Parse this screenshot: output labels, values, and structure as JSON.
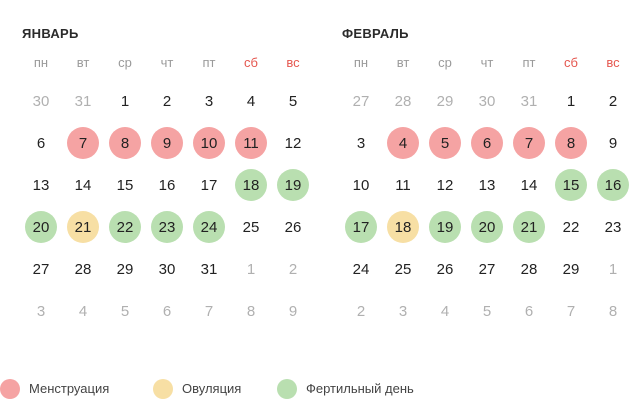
{
  "colors": {
    "menstruation": "#f5a3a3",
    "ovulation": "#f7dfa4",
    "fertile": "#b9dfb0",
    "weekend_text": "#e5574f",
    "muted_text": "#b0b0b0"
  },
  "months": [
    {
      "title": "ЯНВАРЬ",
      "weekdays": [
        "пн",
        "вт",
        "ср",
        "чт",
        "пт",
        "сб",
        "вс"
      ],
      "weeks": [
        [
          {
            "d": "30",
            "s": "other"
          },
          {
            "d": "31",
            "s": "other"
          },
          {
            "d": "1"
          },
          {
            "d": "2"
          },
          {
            "d": "3"
          },
          {
            "d": "4"
          },
          {
            "d": "5"
          }
        ],
        [
          {
            "d": "6"
          },
          {
            "d": "7",
            "s": "m"
          },
          {
            "d": "8",
            "s": "m"
          },
          {
            "d": "9",
            "s": "m"
          },
          {
            "d": "10",
            "s": "m"
          },
          {
            "d": "11",
            "s": "m"
          },
          {
            "d": "12"
          }
        ],
        [
          {
            "d": "13"
          },
          {
            "d": "14"
          },
          {
            "d": "15"
          },
          {
            "d": "16"
          },
          {
            "d": "17"
          },
          {
            "d": "18",
            "s": "f"
          },
          {
            "d": "19",
            "s": "f"
          }
        ],
        [
          {
            "d": "20",
            "s": "f"
          },
          {
            "d": "21",
            "s": "o"
          },
          {
            "d": "22",
            "s": "f"
          },
          {
            "d": "23",
            "s": "f"
          },
          {
            "d": "24",
            "s": "f"
          },
          {
            "d": "25"
          },
          {
            "d": "26"
          }
        ],
        [
          {
            "d": "27"
          },
          {
            "d": "28"
          },
          {
            "d": "29"
          },
          {
            "d": "30"
          },
          {
            "d": "31"
          },
          {
            "d": "1",
            "s": "other"
          },
          {
            "d": "2",
            "s": "other"
          }
        ],
        [
          {
            "d": "3",
            "s": "other"
          },
          {
            "d": "4",
            "s": "other"
          },
          {
            "d": "5",
            "s": "other"
          },
          {
            "d": "6",
            "s": "other"
          },
          {
            "d": "7",
            "s": "other"
          },
          {
            "d": "8",
            "s": "other"
          },
          {
            "d": "9",
            "s": "other"
          }
        ]
      ]
    },
    {
      "title": "ФЕВРАЛЬ",
      "weekdays": [
        "пн",
        "вт",
        "ср",
        "чт",
        "пт",
        "сб",
        "вс"
      ],
      "weeks": [
        [
          {
            "d": "27",
            "s": "other"
          },
          {
            "d": "28",
            "s": "other"
          },
          {
            "d": "29",
            "s": "other"
          },
          {
            "d": "30",
            "s": "other"
          },
          {
            "d": "31",
            "s": "other"
          },
          {
            "d": "1"
          },
          {
            "d": "2"
          }
        ],
        [
          {
            "d": "3"
          },
          {
            "d": "4",
            "s": "m"
          },
          {
            "d": "5",
            "s": "m"
          },
          {
            "d": "6",
            "s": "m"
          },
          {
            "d": "7",
            "s": "m"
          },
          {
            "d": "8",
            "s": "m"
          },
          {
            "d": "9"
          }
        ],
        [
          {
            "d": "10"
          },
          {
            "d": "11"
          },
          {
            "d": "12"
          },
          {
            "d": "13"
          },
          {
            "d": "14"
          },
          {
            "d": "15",
            "s": "f"
          },
          {
            "d": "16",
            "s": "f"
          }
        ],
        [
          {
            "d": "17",
            "s": "f"
          },
          {
            "d": "18",
            "s": "o"
          },
          {
            "d": "19",
            "s": "f"
          },
          {
            "d": "20",
            "s": "f"
          },
          {
            "d": "21",
            "s": "f"
          },
          {
            "d": "22"
          },
          {
            "d": "23"
          }
        ],
        [
          {
            "d": "24"
          },
          {
            "d": "25"
          },
          {
            "d": "26"
          },
          {
            "d": "27"
          },
          {
            "d": "28"
          },
          {
            "d": "29"
          },
          {
            "d": "1",
            "s": "other"
          }
        ],
        [
          {
            "d": "2",
            "s": "other"
          },
          {
            "d": "3",
            "s": "other"
          },
          {
            "d": "4",
            "s": "other"
          },
          {
            "d": "5",
            "s": "other"
          },
          {
            "d": "6",
            "s": "other"
          },
          {
            "d": "7",
            "s": "other"
          },
          {
            "d": "8",
            "s": "other"
          }
        ]
      ]
    }
  ],
  "legend": [
    {
      "label": "Менструация",
      "color_key": "menstruation"
    },
    {
      "label": "Овуляция",
      "color_key": "ovulation"
    },
    {
      "label": "Фертильный день",
      "color_key": "fertile"
    }
  ]
}
